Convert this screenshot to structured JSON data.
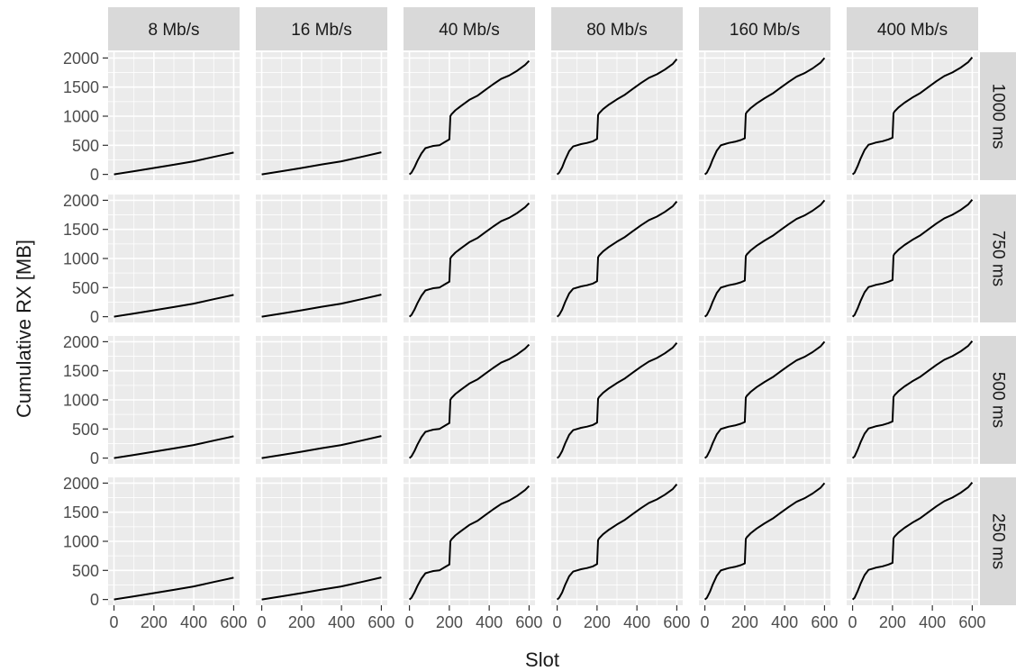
{
  "chart_data": {
    "type": "line",
    "facet_layout": "grid",
    "column_facets": [
      "8 Mb/s",
      "16 Mb/s",
      "40 Mb/s",
      "80 Mb/s",
      "160 Mb/s",
      "400 Mb/s"
    ],
    "row_facets": [
      "1000 ms",
      "750 ms",
      "500 ms",
      "250 ms"
    ],
    "xlabel": "Slot",
    "ylabel": "Cumulative RX [MB]",
    "xlim": [
      0,
      600
    ],
    "ylim": [
      0,
      2000
    ],
    "x_ticks": [
      0,
      200,
      400,
      600
    ],
    "y_ticks": [
      0,
      500,
      1000,
      1500,
      2000
    ],
    "grid": true,
    "colors": {
      "panel_bg": "#ebebeb",
      "grid": "#ffffff",
      "strip_bg": "#d9d9d9",
      "line": "#000000",
      "text": "#1a1a1a",
      "tick_text": "#4d4d4d"
    },
    "series": [
      {
        "bandwidth": "8 Mb/s",
        "latency": "all",
        "x": [
          0,
          100,
          200,
          300,
          400,
          500,
          600
        ],
        "y": [
          0,
          55,
          110,
          165,
          225,
          300,
          375
        ]
      },
      {
        "bandwidth": "16 Mb/s",
        "latency": "all",
        "x": [
          0,
          100,
          200,
          300,
          400,
          500,
          600
        ],
        "y": [
          0,
          55,
          110,
          170,
          225,
          300,
          380
        ]
      },
      {
        "bandwidth": "40 Mb/s",
        "latency": "all",
        "x": [
          0,
          10,
          25,
          40,
          60,
          80,
          100,
          120,
          150,
          180,
          200,
          205,
          210,
          230,
          260,
          300,
          340,
          380,
          420,
          460,
          500,
          540,
          580,
          600
        ],
        "y": [
          0,
          30,
          120,
          230,
          360,
          450,
          470,
          490,
          500,
          560,
          600,
          1000,
          1030,
          1100,
          1180,
          1280,
          1350,
          1450,
          1550,
          1640,
          1700,
          1780,
          1880,
          1950
        ]
      },
      {
        "bandwidth": "80 Mb/s",
        "latency": "all",
        "x": [
          0,
          10,
          25,
          40,
          60,
          80,
          100,
          120,
          150,
          180,
          200,
          205,
          210,
          230,
          260,
          300,
          340,
          380,
          420,
          460,
          500,
          540,
          580,
          600
        ],
        "y": [
          0,
          30,
          120,
          250,
          400,
          480,
          500,
          520,
          540,
          570,
          610,
          1020,
          1050,
          1120,
          1200,
          1290,
          1370,
          1470,
          1570,
          1660,
          1720,
          1800,
          1900,
          1980
        ]
      },
      {
        "bandwidth": "160 Mb/s",
        "latency": "all",
        "x": [
          0,
          10,
          25,
          40,
          60,
          80,
          100,
          120,
          150,
          180,
          200,
          205,
          210,
          230,
          260,
          300,
          340,
          380,
          420,
          460,
          500,
          540,
          580,
          600
        ],
        "y": [
          0,
          30,
          130,
          260,
          410,
          500,
          520,
          540,
          560,
          590,
          620,
          1040,
          1070,
          1140,
          1220,
          1310,
          1390,
          1490,
          1590,
          1680,
          1740,
          1820,
          1920,
          2000
        ]
      },
      {
        "bandwidth": "400 Mb/s",
        "latency": "all",
        "x": [
          0,
          10,
          25,
          40,
          60,
          80,
          100,
          120,
          150,
          180,
          200,
          205,
          210,
          230,
          260,
          300,
          340,
          380,
          420,
          460,
          500,
          540,
          580,
          600
        ],
        "y": [
          0,
          30,
          140,
          270,
          420,
          510,
          530,
          550,
          570,
          600,
          630,
          1050,
          1080,
          1150,
          1230,
          1320,
          1400,
          1500,
          1600,
          1690,
          1750,
          1830,
          1930,
          2010
        ]
      }
    ]
  }
}
